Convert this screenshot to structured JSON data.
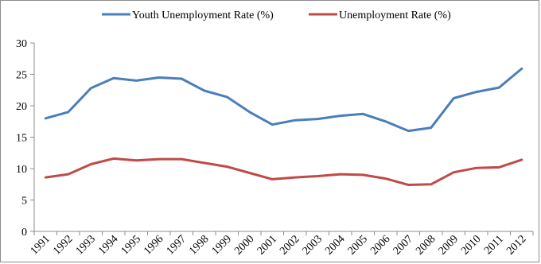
{
  "chart_data": {
    "type": "line",
    "title": "",
    "xlabel": "",
    "ylabel": "",
    "x": [
      "1991",
      "1992",
      "1993",
      "1994",
      "1995",
      "1996",
      "1997",
      "1998",
      "1999",
      "2000",
      "2001",
      "2002",
      "2003",
      "2004",
      "2005",
      "2006",
      "2007",
      "2008",
      "2009",
      "2010",
      "2011",
      "2012"
    ],
    "ylim": [
      0,
      30
    ],
    "yticks": [
      "0",
      "5",
      "10",
      "15",
      "20",
      "25",
      "30"
    ],
    "grid": false,
    "legend_position": "top",
    "series": [
      {
        "name": "Youth Unemployment Rate (%)",
        "color": "#4a7ebb",
        "values": [
          18.0,
          19.0,
          22.8,
          24.4,
          24.0,
          24.5,
          24.3,
          22.4,
          21.4,
          19.0,
          17.0,
          17.7,
          17.9,
          18.4,
          18.7,
          17.5,
          16.0,
          16.5,
          21.2,
          22.2,
          22.9,
          25.9
        ]
      },
      {
        "name": "Unemployment Rate (%)",
        "color": "#be4b48",
        "values": [
          8.6,
          9.1,
          10.7,
          11.6,
          11.3,
          11.5,
          11.5,
          10.9,
          10.3,
          9.3,
          8.3,
          8.6,
          8.8,
          9.1,
          9.0,
          8.4,
          7.4,
          7.5,
          9.4,
          10.1,
          10.2,
          11.4
        ]
      }
    ]
  }
}
